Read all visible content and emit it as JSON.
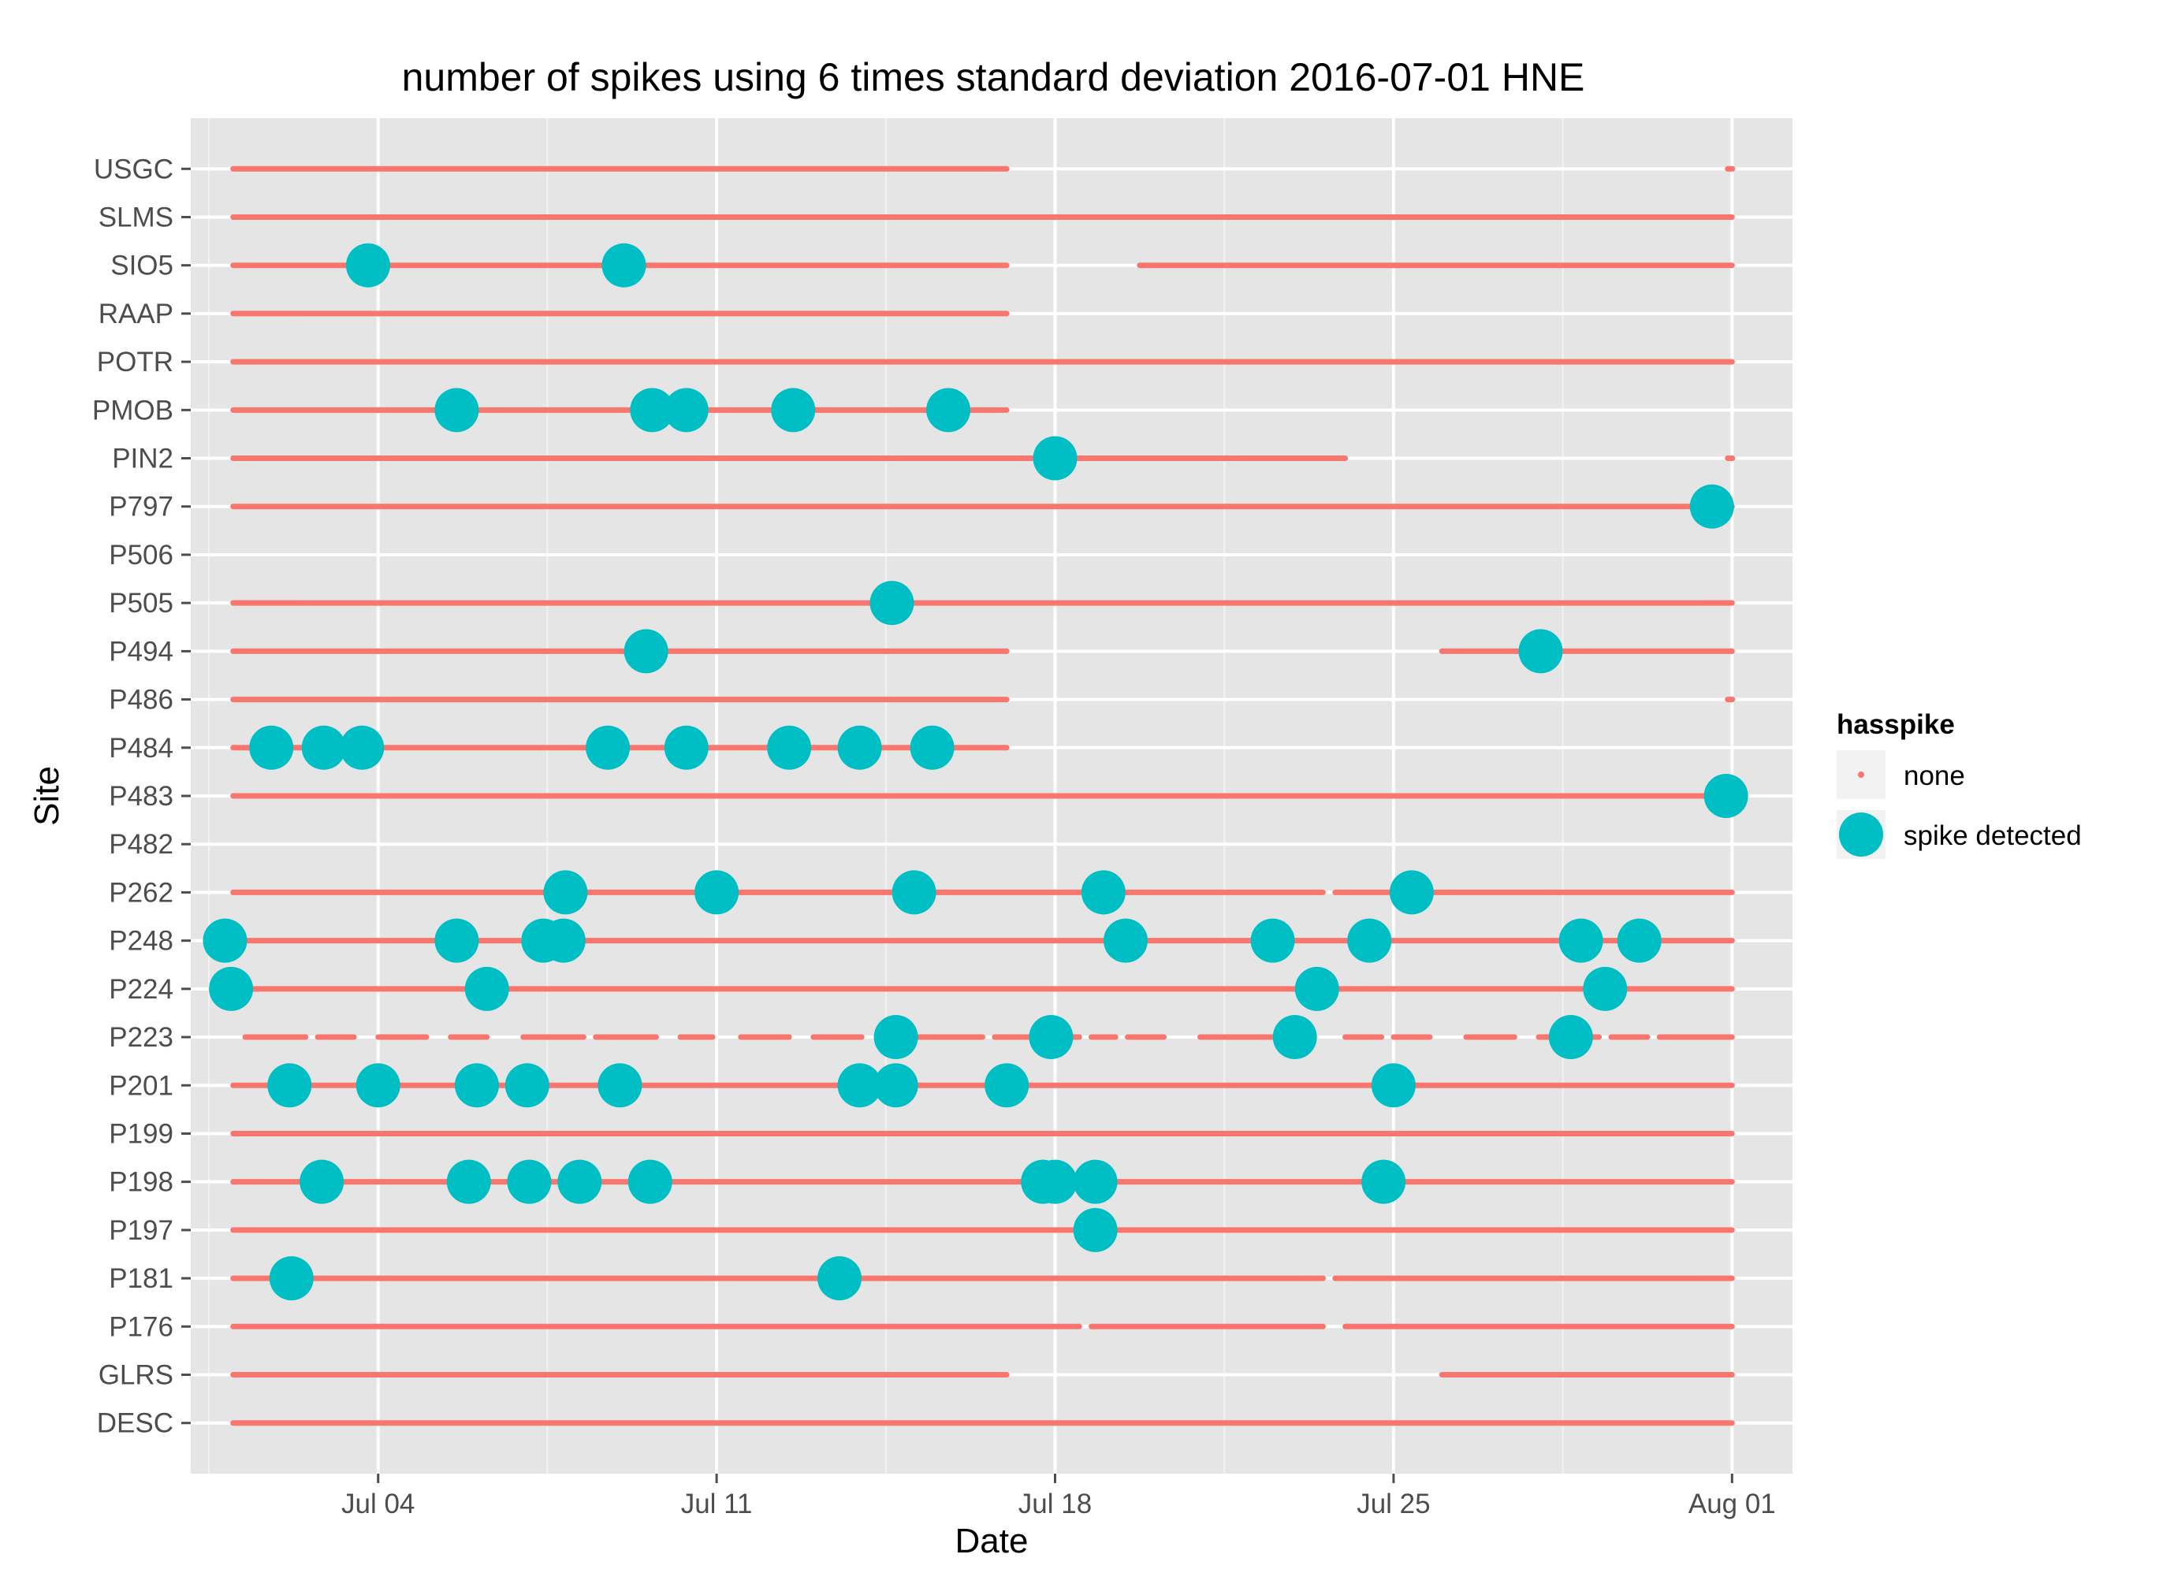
{
  "chart_data": {
    "type": "scatter",
    "title": "number of spikes using  6 times standard deviation 2016-07-01 HNE",
    "xlabel": "Date",
    "ylabel": "Site",
    "x_ticks": [
      "Jul 04",
      "Jul 11",
      "Jul 18",
      "Jul 25",
      "Aug 01"
    ],
    "x_tick_values": [
      "2016-07-04",
      "2016-07-11",
      "2016-07-18",
      "2016-07-25",
      "2016-08-01"
    ],
    "xlim": [
      "2016-06-30T03:00",
      "2016-08-02T06:00"
    ],
    "categories": [
      "USGC",
      "SLMS",
      "SIO5",
      "RAAP",
      "POTR",
      "PMOB",
      "PIN2",
      "P797",
      "P506",
      "P505",
      "P494",
      "P486",
      "P484",
      "P483",
      "P482",
      "P262",
      "P248",
      "P224",
      "P223",
      "P201",
      "P199",
      "P198",
      "P197",
      "P181",
      "P176",
      "GLRS",
      "DESC"
    ],
    "grid": true,
    "legend": {
      "title": "hasspike",
      "placement": "right",
      "entries": [
        "none",
        "spike detected"
      ]
    },
    "colors": {
      "none": "#F8766D",
      "spike detected": "#00BFC4",
      "panel": "#E5E5E5",
      "grid": "#FFFFFF"
    },
    "series": [
      {
        "name": "none",
        "marker": "small",
        "segments": {
          "USGC": [
            [
              "2016-07-01T00:00",
              "2016-07-17T00:00"
            ],
            [
              "2016-07-31T23:00",
              "2016-08-01T00:00"
            ]
          ],
          "SLMS": [
            [
              "2016-07-01T00:00",
              "2016-08-01T00:00"
            ]
          ],
          "SIO5": [
            [
              "2016-07-01T00:00",
              "2016-07-17T00:00"
            ],
            [
              "2016-07-19T18:00",
              "2016-08-01T00:00"
            ]
          ],
          "RAAP": [
            [
              "2016-07-01T00:00",
              "2016-07-17T00:00"
            ]
          ],
          "POTR": [
            [
              "2016-07-01T00:00",
              "2016-08-01T00:00"
            ]
          ],
          "PMOB": [
            [
              "2016-07-01T00:00",
              "2016-07-17T00:00"
            ]
          ],
          "PIN2": [
            [
              "2016-07-01T00:00",
              "2016-07-24T00:00"
            ],
            [
              "2016-07-31T23:00",
              "2016-08-01T00:00"
            ]
          ],
          "P797": [
            [
              "2016-07-01T00:00",
              "2016-08-01T00:00"
            ]
          ],
          "P506": [],
          "P505": [
            [
              "2016-07-01T00:00",
              "2016-08-01T00:00"
            ]
          ],
          "P494": [
            [
              "2016-07-01T00:00",
              "2016-07-17T00:00"
            ],
            [
              "2016-07-26T00:00",
              "2016-08-01T00:00"
            ]
          ],
          "P486": [
            [
              "2016-07-01T00:00",
              "2016-07-17T00:00"
            ],
            [
              "2016-07-31T23:00",
              "2016-08-01T00:00"
            ]
          ],
          "P484": [
            [
              "2016-07-01T00:00",
              "2016-07-17T00:00"
            ]
          ],
          "P483": [
            [
              "2016-07-01T00:00",
              "2016-08-01T00:00"
            ]
          ],
          "P482": [],
          "P262": [
            [
              "2016-07-01T00:00",
              "2016-07-23T13:00"
            ],
            [
              "2016-07-23T19:00",
              "2016-08-01T00:00"
            ]
          ],
          "P248": [
            [
              "2016-07-01T00:00",
              "2016-08-01T00:00"
            ]
          ],
          "P224": [
            [
              "2016-07-01T00:00",
              "2016-08-01T00:00"
            ]
          ],
          "P223": [
            [
              "2016-07-01T06:00",
              "2016-07-02T12:00"
            ],
            [
              "2016-07-02T18:00",
              "2016-07-03T12:00"
            ],
            [
              "2016-07-04T00:00",
              "2016-07-05T00:00"
            ],
            [
              "2016-07-05T12:00",
              "2016-07-06T06:00"
            ],
            [
              "2016-07-07T00:00",
              "2016-07-08T06:00"
            ],
            [
              "2016-07-08T12:00",
              "2016-07-09T18:00"
            ],
            [
              "2016-07-10T06:00",
              "2016-07-10T22:00"
            ],
            [
              "2016-07-11T12:00",
              "2016-07-12T12:00"
            ],
            [
              "2016-07-13T00:00",
              "2016-07-14T00:00"
            ],
            [
              "2016-07-14T08:00",
              "2016-07-16T12:00"
            ],
            [
              "2016-07-16T18:00",
              "2016-07-18T12:00"
            ],
            [
              "2016-07-18T18:00",
              "2016-07-19T06:00"
            ],
            [
              "2016-07-19T12:00",
              "2016-07-20T06:00"
            ],
            [
              "2016-07-21T00:00",
              "2016-07-22T12:00"
            ],
            [
              "2016-07-22T18:00",
              "2016-07-23T06:00"
            ],
            [
              "2016-07-24T00:00",
              "2016-07-24T18:00"
            ],
            [
              "2016-07-25T00:00",
              "2016-07-25T18:00"
            ],
            [
              "2016-07-26T12:00",
              "2016-07-27T12:00"
            ],
            [
              "2016-07-28T00:00",
              "2016-07-29T06:00"
            ],
            [
              "2016-07-29T12:00",
              "2016-07-30T06:00"
            ],
            [
              "2016-07-30T12:00",
              "2016-08-01T00:00"
            ]
          ],
          "P201": [
            [
              "2016-07-01T00:00",
              "2016-08-01T00:00"
            ]
          ],
          "P199": [
            [
              "2016-07-01T00:00",
              "2016-08-01T00:00"
            ]
          ],
          "P198": [
            [
              "2016-07-01T00:00",
              "2016-08-01T00:00"
            ]
          ],
          "P197": [
            [
              "2016-07-01T00:00",
              "2016-08-01T00:00"
            ]
          ],
          "P181": [
            [
              "2016-07-01T00:00",
              "2016-07-23T13:00"
            ],
            [
              "2016-07-23T19:00",
              "2016-08-01T00:00"
            ]
          ],
          "P176": [
            [
              "2016-07-01T00:00",
              "2016-07-18T12:00"
            ],
            [
              "2016-07-18T18:00",
              "2016-07-23T13:00"
            ],
            [
              "2016-07-24T00:00",
              "2016-08-01T00:00"
            ]
          ],
          "GLRS": [
            [
              "2016-07-01T00:00",
              "2016-07-17T00:00"
            ],
            [
              "2016-07-26T00:00",
              "2016-08-01T00:00"
            ]
          ],
          "DESC": [
            [
              "2016-07-01T00:00",
              "2016-08-01T00:00"
            ]
          ]
        }
      },
      {
        "name": "spike detected",
        "marker": "large",
        "points": {
          "SIO5": [
            "2016-07-03T19:00",
            "2016-07-09T02:00"
          ],
          "PMOB": [
            "2016-07-05T15:00",
            "2016-07-09T16:00",
            "2016-07-10T09:00",
            "2016-07-12T14:00",
            "2016-07-15T19:00"
          ],
          "PIN2": [
            "2016-07-18T00:00"
          ],
          "P797": [
            "2016-07-31T14:00"
          ],
          "P505": [
            "2016-07-14T15:00"
          ],
          "P494": [
            "2016-07-09T13:00",
            "2016-07-28T01:00"
          ],
          "P484": [
            "2016-07-01T19:00",
            "2016-07-02T21:00",
            "2016-07-03T16:00",
            "2016-07-08T18:00",
            "2016-07-10T09:00",
            "2016-07-12T12:00",
            "2016-07-13T23:00",
            "2016-07-15T11:00"
          ],
          "P483": [
            "2016-07-31T21:00"
          ],
          "P262": [
            "2016-07-07T21:00",
            "2016-07-11T00:00",
            "2016-07-15T02:00",
            "2016-07-19T00:00",
            "2016-07-25T09:00"
          ],
          "P248": [
            "2016-06-30T20:00",
            "2016-07-05T15:00",
            "2016-07-07T10:00",
            "2016-07-07T20:00",
            "2016-07-19T11:00",
            "2016-07-22T12:00",
            "2016-07-24T12:00",
            "2016-07-28T21:00",
            "2016-07-30T02:00"
          ],
          "P224": [
            "2016-06-30T23:00",
            "2016-07-06T06:00",
            "2016-07-23T10:00",
            "2016-07-29T09:00"
          ],
          "P223": [
            "2016-07-14T17:00",
            "2016-07-17T22:00",
            "2016-07-22T23:00",
            "2016-07-28T16:00"
          ],
          "P201": [
            "2016-07-02T04:00",
            "2016-07-04T00:00",
            "2016-07-06T01:00",
            "2016-07-07T02:00",
            "2016-07-09T00:00",
            "2016-07-13T23:00",
            "2016-07-14T17:00",
            "2016-07-17T00:00",
            "2016-07-25T00:00"
          ],
          "P198": [
            "2016-07-02T20:00",
            "2016-07-05T21:00",
            "2016-07-07T03:00",
            "2016-07-08T04:00",
            "2016-07-09T15:00",
            "2016-07-17T18:00",
            "2016-07-18T00:00",
            "2016-07-18T20:00",
            "2016-07-24T19:00"
          ],
          "P197": [
            "2016-07-18T20:00"
          ],
          "P181": [
            "2016-07-02T05:00",
            "2016-07-13T13:00"
          ]
        }
      }
    ]
  }
}
